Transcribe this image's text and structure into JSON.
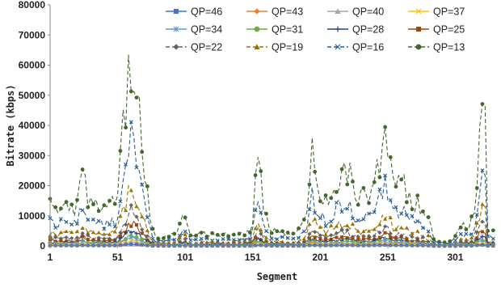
{
  "chart_data": {
    "type": "line",
    "xlabel": "Segment",
    "ylabel": "Bitrate (kbps)",
    "xlim": [
      1,
      330
    ],
    "ylim": [
      0,
      80000
    ],
    "yticks": [
      0,
      10000,
      20000,
      30000,
      40000,
      50000,
      60000,
      70000,
      80000
    ],
    "xticks": [
      1,
      51,
      101,
      151,
      201,
      251,
      301
    ],
    "legend_position": "top-right",
    "grid": false,
    "base_profile": {
      "x": [
        1,
        10,
        20,
        25,
        30,
        40,
        50,
        55,
        60,
        62,
        65,
        70,
        75,
        78,
        85,
        95,
        100,
        105,
        115,
        125,
        135,
        145,
        150,
        155,
        160,
        165,
        170,
        180,
        190,
        195,
        200,
        205,
        210,
        220,
        230,
        240,
        245,
        250,
        255,
        260,
        265,
        270,
        275,
        280,
        285,
        290,
        295,
        300,
        305,
        310,
        315,
        318,
        320,
        323,
        325,
        330
      ],
      "y": [
        14000,
        14000,
        13000,
        24000,
        15000,
        13000,
        15000,
        40000,
        60000,
        68000,
        55000,
        30000,
        10000,
        3000,
        3000,
        4000,
        13000,
        3000,
        4000,
        4000,
        4000,
        4000,
        5000,
        30000,
        10000,
        5000,
        5000,
        4000,
        8000,
        30000,
        20000,
        15000,
        20000,
        27000,
        15000,
        20000,
        30000,
        37000,
        20000,
        23000,
        18000,
        15000,
        14000,
        12000,
        2000,
        1000,
        1000,
        2000,
        7000,
        6000,
        10000,
        30000,
        40000,
        39000,
        5000,
        5000
      ]
    },
    "series": [
      {
        "name": "QP=46",
        "color": "#4472C4",
        "marker": "square",
        "dash": "solid",
        "scale": 0.008
      },
      {
        "name": "QP=43",
        "color": "#ED7D31",
        "marker": "diamond",
        "dash": "solid",
        "scale": 0.012
      },
      {
        "name": "QP=40",
        "color": "#A5A5A5",
        "marker": "triangle",
        "dash": "solid",
        "scale": 0.018
      },
      {
        "name": "QP=37",
        "color": "#FFC000",
        "marker": "x",
        "dash": "solid",
        "scale": 0.026
      },
      {
        "name": "QP=34",
        "color": "#5B9BD5",
        "marker": "star",
        "dash": "solid",
        "scale": 0.038
      },
      {
        "name": "QP=31",
        "color": "#70AD47",
        "marker": "circle",
        "dash": "solid",
        "scale": 0.055
      },
      {
        "name": "QP=28",
        "color": "#264478",
        "marker": "plus",
        "dash": "solid",
        "scale": 0.08
      },
      {
        "name": "QP=25",
        "color": "#9E480E",
        "marker": "square",
        "dash": "solid",
        "scale": 0.12
      },
      {
        "name": "QP=22",
        "color": "#636363",
        "marker": "diamond",
        "dash": "dashed",
        "scale": 0.18
      },
      {
        "name": "QP=19",
        "color": "#997300",
        "marker": "triangle",
        "dash": "dashed",
        "scale": 0.3
      },
      {
        "name": "QP=16",
        "color": "#255E91",
        "marker": "x",
        "dash": "dashed",
        "scale": 0.55
      },
      {
        "name": "QP=13",
        "color": "#43682B",
        "marker": "circle",
        "dash": "dashed",
        "scale": 1.0
      }
    ]
  }
}
